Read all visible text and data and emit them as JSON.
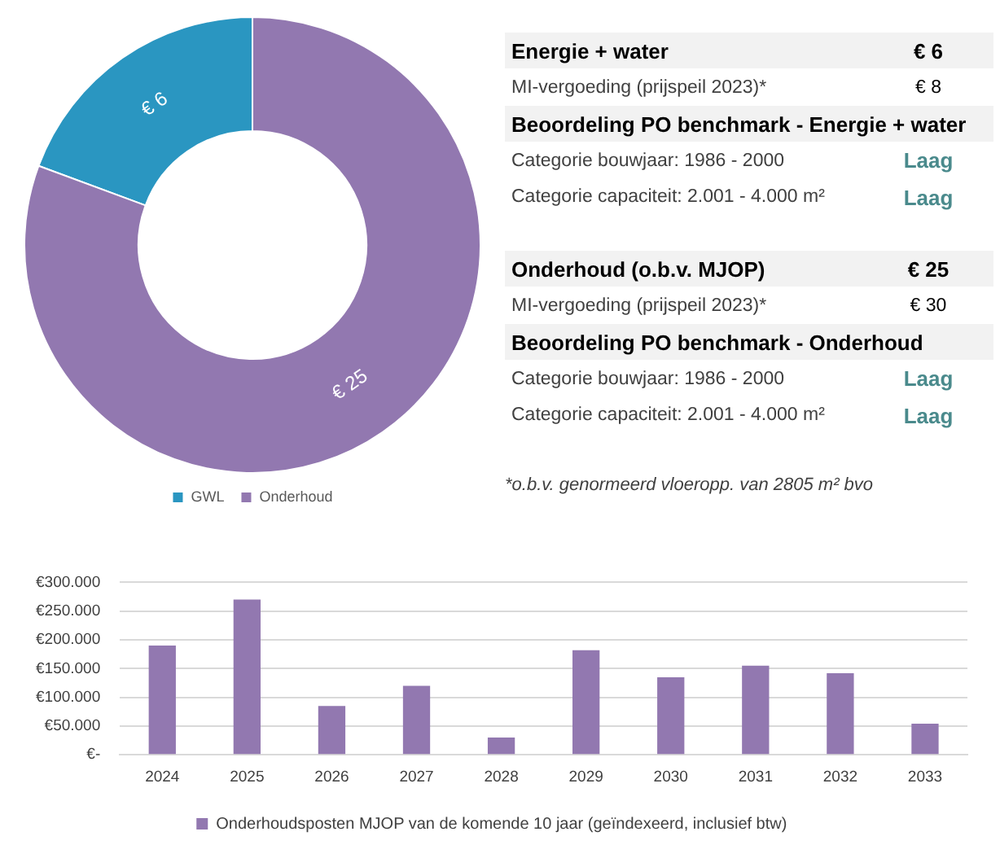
{
  "chart_data": [
    {
      "type": "donut",
      "categories": [
        "GWL",
        "Onderhoud"
      ],
      "values": [
        6,
        25
      ],
      "colors": [
        "#2a96c1",
        "#9278b0"
      ],
      "value_labels": [
        "€ 6",
        "€ 25"
      ],
      "legend": "bottom"
    },
    {
      "type": "other",
      "categories": [
        "Energie + water",
        "MI-vergoeding (prijspeil 2023)*",
        "Beoordeling PO benchmark - Energie + water",
        "Categorie bouwjaar: 1986 - 2000",
        "Categorie capaciteit: 2.001 - 4.000 m²",
        "Onderhoud (o.b.v. MJOP)",
        "MI-vergoeding (prijspeil 2023)*",
        "Beoordeling PO benchmark - Onderhoud",
        "Categorie bouwjaar: 1986 - 2000",
        "Categorie capaciteit: 2.001 - 4.000 m²"
      ],
      "value_labels": [
        "€ 6",
        "€ 8",
        null,
        "Laag",
        "Laag",
        "€ 25",
        "€ 30",
        null,
        "Laag",
        "Laag"
      ],
      "annotations": [
        "*o.b.v. genormeerd vloeropp. van 2805 m² bvo"
      ]
    },
    {
      "type": "bar",
      "categories": [
        "2024",
        "2025",
        "2026",
        "2027",
        "2028",
        "2029",
        "2030",
        "2031",
        "2032",
        "2033"
      ],
      "series": [
        {
          "name": "Onderhoudsposten MJOP van de komende 10 jaar (geïndexeerd, inclusief btw)",
          "color": "#9278b0",
          "values": [
            190000,
            270000,
            85000,
            120000,
            30000,
            182000,
            135000,
            155000,
            142000,
            54000
          ]
        }
      ],
      "ylim": [
        0,
        300000
      ],
      "yticks": [
        {
          "value": 0,
          "label": "€-"
        },
        {
          "value": 50000,
          "label": "€50.000"
        },
        {
          "value": 100000,
          "label": "€100.000"
        },
        {
          "value": 150000,
          "label": "€150.000"
        },
        {
          "value": 200000,
          "label": "€200.000"
        },
        {
          "value": 250000,
          "label": "€250.000"
        },
        {
          "value": 300000,
          "label": "€300.000"
        }
      ],
      "grid": "y",
      "legend": "bottom"
    }
  ]
}
